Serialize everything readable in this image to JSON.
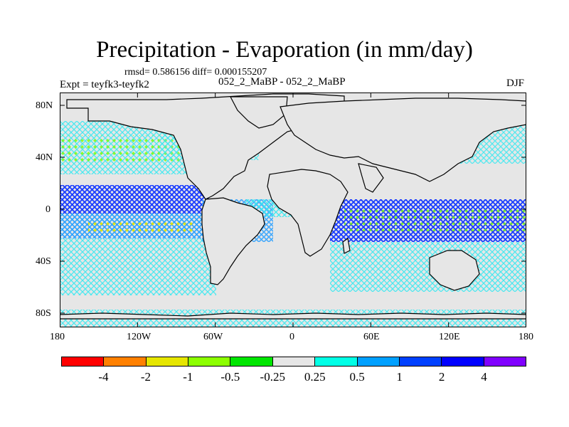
{
  "title": "Precipitation - Evaporation (in mm/day)",
  "stats": "rmsd= 0.586156 diff= 0.000155207",
  "experiment": "Expt = teyfk3-teyfk2",
  "run_label": "052_2_MaBP - 052_2_MaBP",
  "season": "DJF",
  "map": {
    "ocean_background": "#e6e6e6",
    "x_ticks": [
      "180",
      "120W",
      "60W",
      "0",
      "60E",
      "120E",
      "180"
    ],
    "y_ticks": [
      "80N",
      "40N",
      "0",
      "40S",
      "80S"
    ]
  },
  "colorbar": {
    "colors": [
      "#ff0000",
      "#ff8000",
      "#e6e600",
      "#8cff00",
      "#00e600",
      "#e6e6e6",
      "#00ffe6",
      "#00a0ff",
      "#0040ff",
      "#0000ff",
      "#8000ff"
    ],
    "labels": [
      "-4",
      "-2",
      "-1",
      "-0.5",
      "-0.25",
      "0.25",
      "0.5",
      "1",
      "2",
      "4"
    ]
  }
}
